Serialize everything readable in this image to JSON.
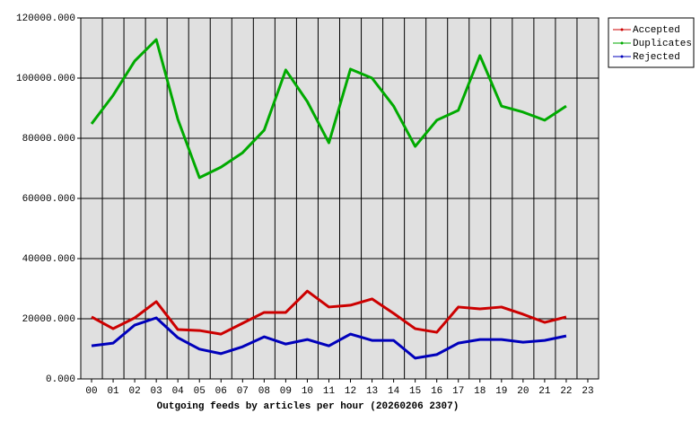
{
  "chart_data": {
    "type": "line",
    "title": "Outgoing feeds by articles per hour (20260206 2307)",
    "categories": [
      "00",
      "01",
      "02",
      "03",
      "04",
      "05",
      "06",
      "07",
      "08",
      "09",
      "10",
      "11",
      "12",
      "13",
      "14",
      "15",
      "16",
      "17",
      "18",
      "19",
      "20",
      "21",
      "22",
      "23"
    ],
    "series": [
      {
        "name": "Accepted",
        "color": "#cc0000",
        "values": [
          20600,
          16700,
          20300,
          25700,
          16400,
          16100,
          14900,
          18500,
          22100,
          22100,
          29200,
          23900,
          24500,
          26600,
          21800,
          16700,
          15500,
          23900,
          23300,
          23900,
          21500,
          18800,
          20600,
          null
        ]
      },
      {
        "name": "Duplicates",
        "color": "#00aa00",
        "values": [
          84800,
          94300,
          105700,
          112800,
          86300,
          66900,
          70400,
          75200,
          82700,
          102700,
          92200,
          78500,
          103000,
          100000,
          90700,
          77300,
          86000,
          89300,
          107500,
          90700,
          88700,
          86000,
          90700,
          null
        ]
      },
      {
        "name": "Rejected",
        "color": "#0000bb",
        "values": [
          11000,
          11900,
          17900,
          20300,
          13700,
          9900,
          8400,
          10700,
          14000,
          11600,
          13100,
          11000,
          14900,
          12800,
          12800,
          6900,
          8100,
          11900,
          13100,
          13100,
          12200,
          12800,
          14300,
          null
        ]
      }
    ],
    "ylim": [
      0,
      120000
    ],
    "yticks": [
      {
        "value": 0,
        "label": "0.000"
      },
      {
        "value": 20000,
        "label": "20000.000"
      },
      {
        "value": 40000,
        "label": "40000.000"
      },
      {
        "value": 60000,
        "label": "60000.000"
      },
      {
        "value": 80000,
        "label": "80000.000"
      },
      {
        "value": 100000,
        "label": "100000.000"
      },
      {
        "value": 120000,
        "label": "120000.000"
      }
    ],
    "grid": true,
    "legend": "right"
  }
}
